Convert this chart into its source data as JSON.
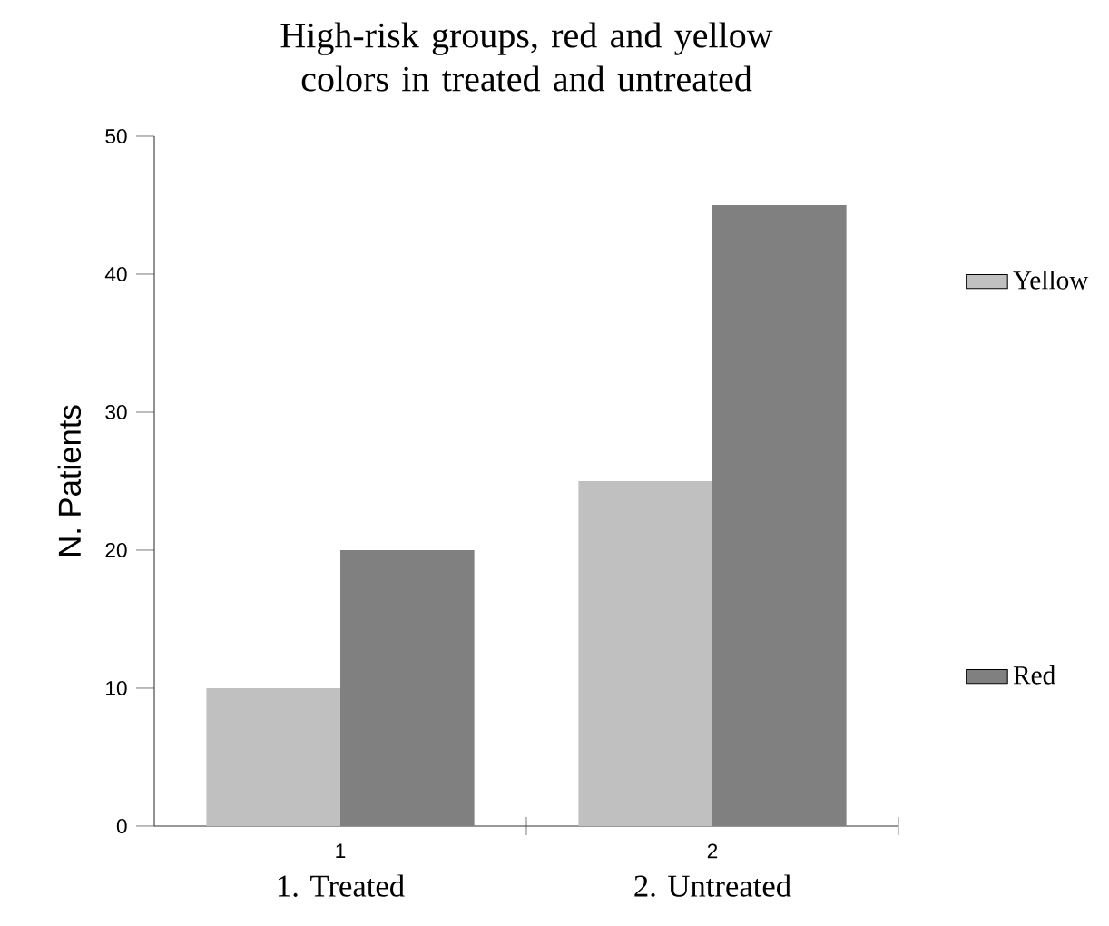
{
  "chart_data": {
    "type": "bar",
    "title": "High-risk groups, red and yellow colors in treated and untreated",
    "ylabel": "N. Patients",
    "categories": [
      "1",
      "2"
    ],
    "series": [
      {
        "name": "Yellow",
        "color": "#c0c0c0",
        "values": [
          10,
          25
        ]
      },
      {
        "name": "Red",
        "color": "#808080",
        "values": [
          20,
          45
        ]
      }
    ],
    "ylim": [
      0,
      50
    ],
    "yticks": [
      0,
      10,
      20,
      30,
      40,
      50
    ],
    "legend": "right",
    "annotations": [
      "1. Treated",
      "2. Untreated"
    ]
  }
}
